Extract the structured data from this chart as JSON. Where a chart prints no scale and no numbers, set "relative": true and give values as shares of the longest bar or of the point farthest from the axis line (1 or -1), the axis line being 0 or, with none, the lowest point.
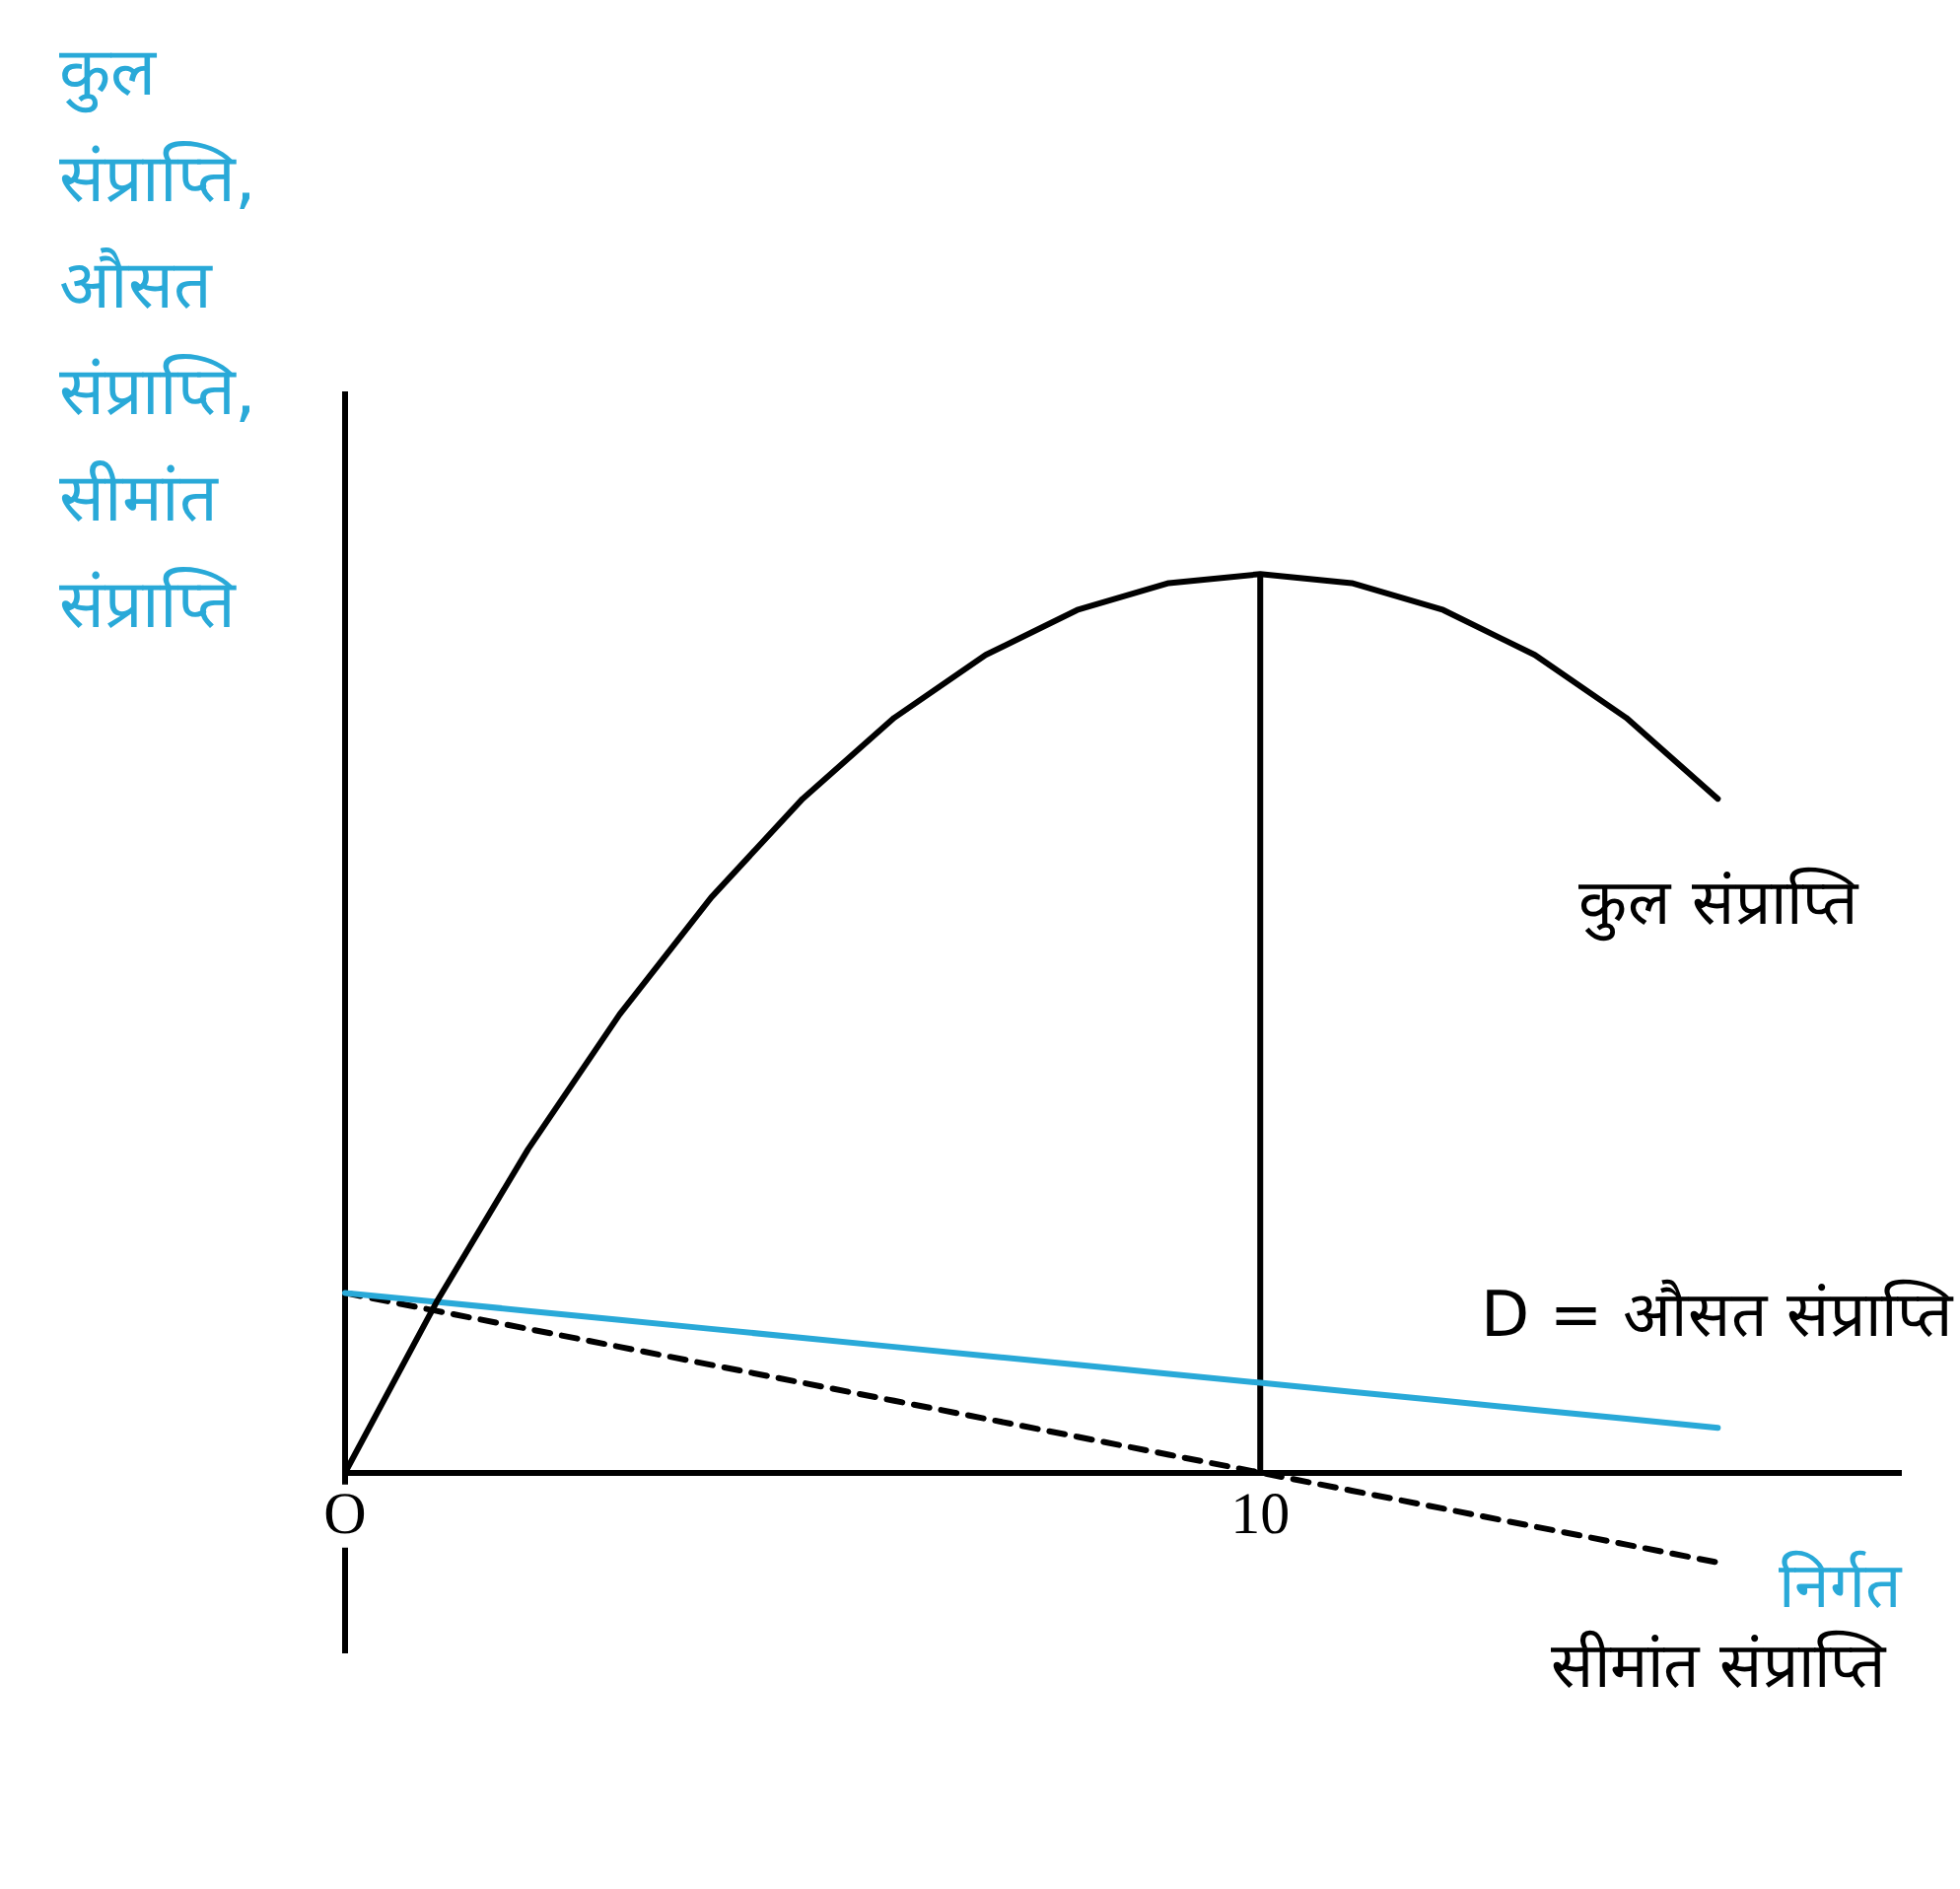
{
  "chart_data": {
    "type": "line",
    "relative": true,
    "ylabel": "कुल संप्राप्ति, औसत संप्राप्ति, सीमांत संप्राप्ति",
    "xlabel": "निर्गत",
    "categories": [
      "O",
      null,
      null,
      null,
      null,
      null,
      null,
      null,
      null,
      null,
      "10",
      null,
      null,
      null,
      null,
      null,
      null,
      null
    ],
    "grid": false,
    "legend": false,
    "marker": "none",
    "ref_lines": [
      {
        "axis": "x",
        "value": "10",
        "color": "#000000",
        "line_style": "solid"
      }
    ],
    "series": [
      {
        "name": "कुल संप्राप्ति",
        "color": "#000000",
        "line_style": "solid",
        "values": [
          0,
          0.19,
          0.36,
          0.51,
          0.64,
          0.75,
          0.84,
          0.91,
          0.96,
          0.99,
          1,
          0.99,
          0.96,
          0.91,
          0.84,
          0.75,
          null,
          null
        ]
      },
      {
        "name": "D = औसत संप्राप्ति",
        "color": "#29a9d8",
        "line_style": "solid",
        "values": [
          0.2,
          0.19,
          0.18,
          0.17,
          0.16,
          0.15,
          0.14,
          0.13,
          0.12,
          0.11,
          0.1,
          0.09,
          0.08,
          0.07,
          0.06,
          0.05,
          null,
          null
        ]
      },
      {
        "name": "सीमांत संप्राप्ति",
        "color": "#000000",
        "line_style": "dashed",
        "values": [
          0.2,
          0.18,
          0.16,
          0.14,
          0.12,
          0.1,
          0.08,
          0.06,
          0.04,
          0.02,
          0,
          -0.02,
          -0.04,
          -0.06,
          -0.08,
          -0.1,
          null,
          null
        ]
      }
    ]
  }
}
